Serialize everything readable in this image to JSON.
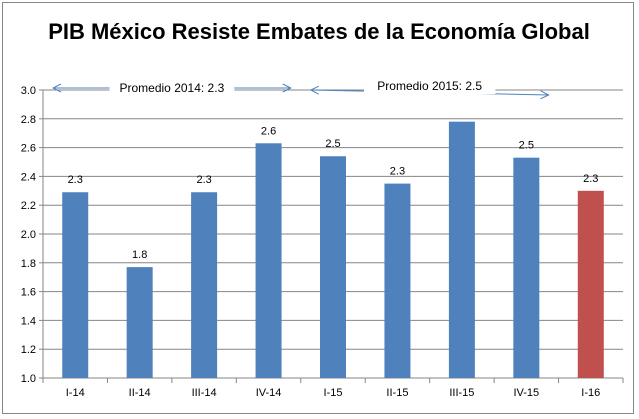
{
  "chart_data": {
    "type": "bar",
    "title": "PIB México Resiste Embates de la Economía Global",
    "categories": [
      "I-14",
      "II-14",
      "III-14",
      "IV-14",
      "I-15",
      "II-15",
      "III-15",
      "IV-15",
      "I-16"
    ],
    "values": [
      2.29,
      1.77,
      2.29,
      2.63,
      2.54,
      2.35,
      2.78,
      2.53,
      2.3
    ],
    "data_labels": [
      "2.3",
      "1.8",
      "2.3",
      "2.6",
      "2.5",
      "2.3",
      "",
      "2.5",
      "2.3"
    ],
    "bar_colors": [
      "#4f81bd",
      "#4f81bd",
      "#4f81bd",
      "#4f81bd",
      "#4f81bd",
      "#4f81bd",
      "#4f81bd",
      "#4f81bd",
      "#c0504d"
    ],
    "xlabel": "",
    "ylabel": "",
    "ylim": [
      1.0,
      3.0
    ],
    "yticks": [
      "1.0",
      "1.2",
      "1.4",
      "1.6",
      "1.8",
      "2.0",
      "2.2",
      "2.4",
      "2.6",
      "2.8",
      "3.0"
    ],
    "grid": "horizontal",
    "legend": "none",
    "annotations": [
      {
        "text": "Promedio 2014: 2.3",
        "from_category": 0,
        "to_category": 3
      },
      {
        "text": "Promedio 2015:  2.5",
        "from_category": 4,
        "to_category": 7
      }
    ]
  }
}
